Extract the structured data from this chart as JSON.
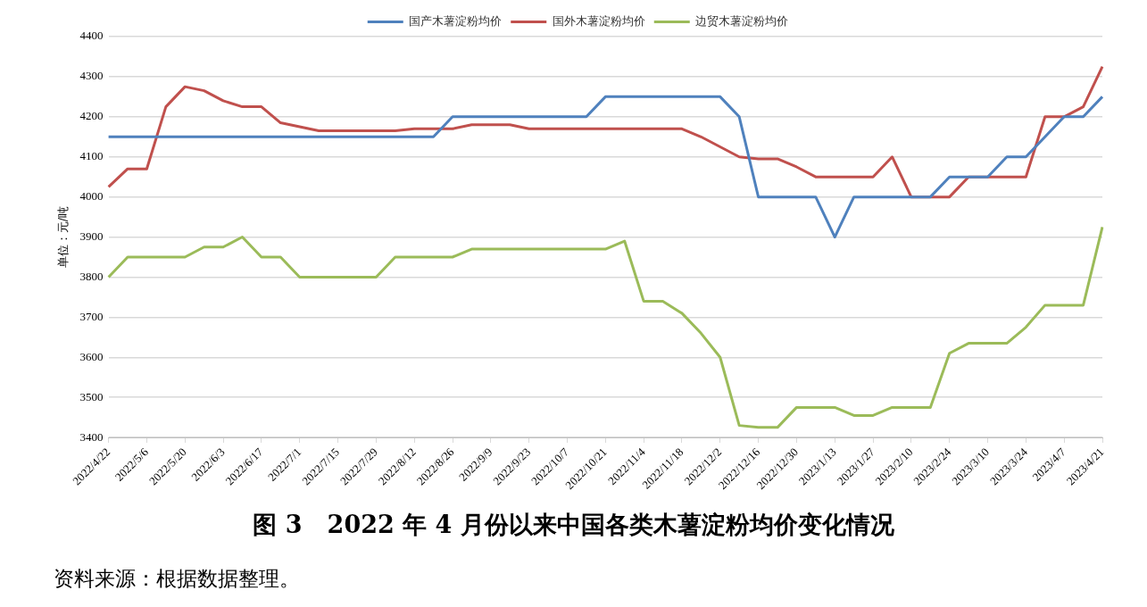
{
  "chart_data": {
    "type": "line",
    "title": "图 3   2022 年 4 月份以来中国各类木薯淀粉均价变化情况",
    "ylabel": "单位：元/吨",
    "categories": [
      "2022/4/22",
      null,
      "2022/5/6",
      null,
      "2022/5/20",
      null,
      "2022/6/3",
      null,
      "2022/6/17",
      null,
      "2022/7/1",
      null,
      "2022/7/15",
      null,
      "2022/7/29",
      null,
      "2022/8/12",
      null,
      "2022/8/26",
      null,
      "2022/9/9",
      null,
      "2022/9/23",
      null,
      "2022/10/7",
      null,
      "2022/10/21",
      null,
      "2022/11/4",
      null,
      "2022/11/18",
      null,
      "2022/12/2",
      null,
      "2022/12/16",
      null,
      "2022/12/30",
      null,
      "2023/1/13",
      null,
      "2023/1/27",
      null,
      "2023/2/10",
      null,
      "2023/2/24",
      null,
      "2023/3/10",
      null,
      "2023/3/24",
      null,
      "2023/4/7",
      null,
      "2023/4/21"
    ],
    "series": [
      {
        "name": "国产木薯淀粉均价",
        "color": "#4f81bd",
        "values": [
          4150,
          4150,
          4150,
          4150,
          4150,
          4150,
          4150,
          4150,
          4150,
          4150,
          4150,
          4150,
          4150,
          4150,
          4150,
          4150,
          4150,
          4150,
          4200,
          4200,
          4200,
          4200,
          4200,
          4200,
          4200,
          4200,
          4250,
          4250,
          4250,
          4250,
          4250,
          4250,
          4250,
          4200,
          4000,
          4000,
          4000,
          4000,
          3900,
          4000,
          4000,
          4000,
          4000,
          4000,
          4050,
          4050,
          4050,
          4100,
          4100,
          4150,
          4200,
          4200,
          4250
        ]
      },
      {
        "name": "国外木薯淀粉均价",
        "color": "#c0504d",
        "values": [
          4025,
          4070,
          4070,
          4225,
          4275,
          4265,
          4240,
          4225,
          4225,
          4185,
          4175,
          4165,
          4165,
          4165,
          4165,
          4165,
          4170,
          4170,
          4170,
          4180,
          4180,
          4180,
          4170,
          4170,
          4170,
          4170,
          4170,
          4170,
          4170,
          4170,
          4170,
          4150,
          4125,
          4100,
          4095,
          4095,
          4075,
          4050,
          4050,
          4050,
          4050,
          4100,
          4000,
          4000,
          4000,
          4050,
          4050,
          4050,
          4050,
          4200,
          4200,
          4225,
          4325
        ]
      },
      {
        "name": "边贸木薯淀粉均价",
        "color": "#9bbb59",
        "values": [
          3800,
          3850,
          3850,
          3850,
          3850,
          3875,
          3875,
          3900,
          3850,
          3850,
          3800,
          3800,
          3800,
          3800,
          3800,
          3850,
          3850,
          3850,
          3850,
          3870,
          3870,
          3870,
          3870,
          3870,
          3870,
          3870,
          3870,
          3890,
          3740,
          3740,
          3710,
          3660,
          3600,
          3430,
          3425,
          3425,
          3475,
          3475,
          3475,
          3455,
          3455,
          3475,
          3475,
          3475,
          3610,
          3635,
          3635,
          3635,
          3675,
          3730,
          3730,
          3730,
          3925
        ]
      }
    ],
    "ylim": [
      3400,
      4400
    ],
    "yticks": [
      3400,
      3500,
      3600,
      3700,
      3800,
      3900,
      4000,
      4100,
      4200,
      4300,
      4400
    ],
    "grid": "y",
    "legend": "top",
    "marker": "none",
    "line_style": "solid",
    "annotations": [
      "资料来源：根据数据整理。"
    ]
  }
}
